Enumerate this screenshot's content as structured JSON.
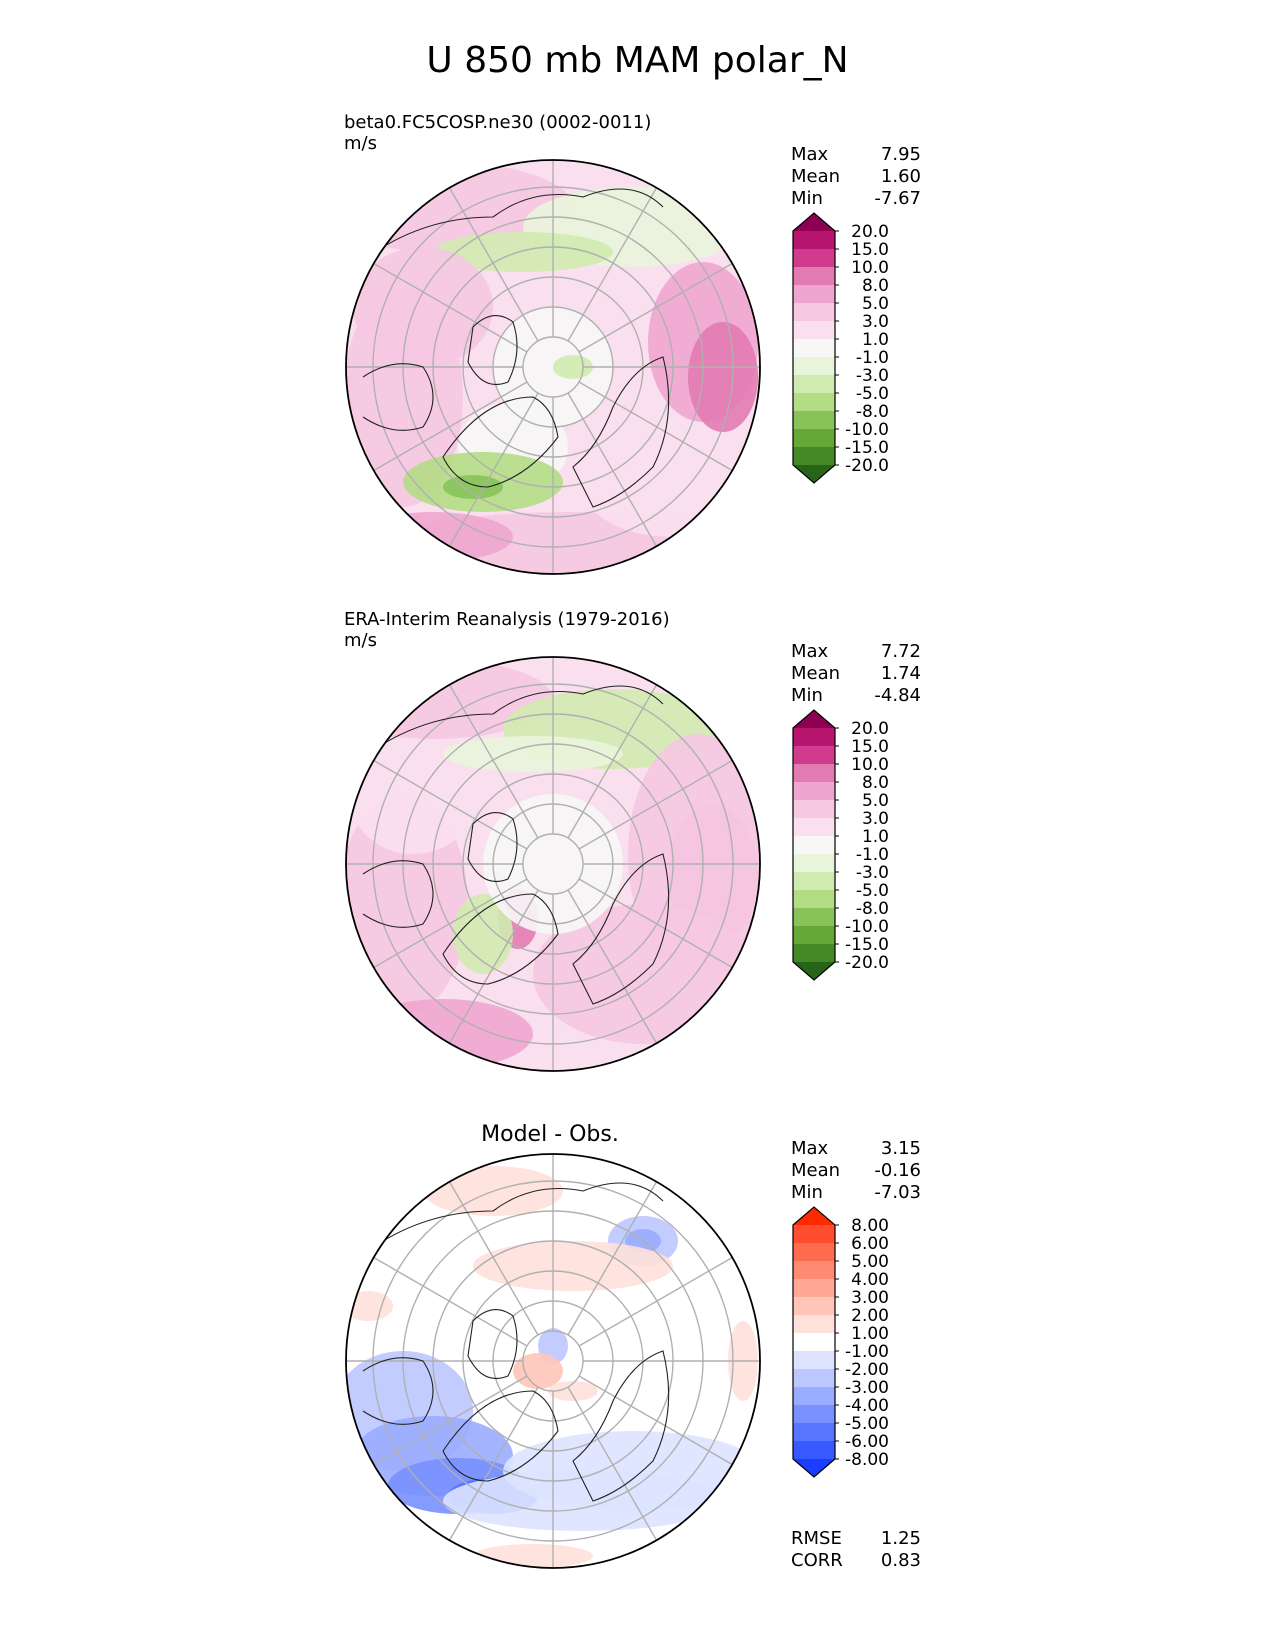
{
  "title": "U 850 mb MAM polar_N",
  "panels": [
    {
      "title": "beta0.FC5COSP.ne30 (0002-0011)",
      "units": "m/s",
      "stats": {
        "max_label": "Max",
        "max": "7.95",
        "mean_label": "Mean",
        "mean": "1.60",
        "min_label": "Min",
        "min": "-7.67"
      },
      "colormap": "PiYG",
      "levels": [
        "20.0",
        "15.0",
        "10.0",
        "8.0",
        "5.0",
        "3.0",
        "1.0",
        "-1.0",
        "-3.0",
        "-5.0",
        "-8.0",
        "-10.0",
        "-15.0",
        "-20.0"
      ]
    },
    {
      "title": "ERA-Interim Reanalysis (1979-2016)",
      "units": "m/s",
      "stats": {
        "max_label": "Max",
        "max": "7.72",
        "mean_label": "Mean",
        "mean": "1.74",
        "min_label": "Min",
        "min": "-4.84"
      },
      "colormap": "PiYG",
      "levels": [
        "20.0",
        "15.0",
        "10.0",
        "8.0",
        "5.0",
        "3.0",
        "1.0",
        "-1.0",
        "-3.0",
        "-5.0",
        "-8.0",
        "-10.0",
        "-15.0",
        "-20.0"
      ]
    },
    {
      "title": "Model - Obs.",
      "stats": {
        "max_label": "Max",
        "max": "3.15",
        "mean_label": "Mean",
        "mean": "-0.16",
        "min_label": "Min",
        "min": "-7.03"
      },
      "metrics": {
        "rmse_label": "RMSE",
        "rmse": "1.25",
        "corr_label": "CORR",
        "corr": "0.83"
      },
      "colormap": "bwr",
      "levels": [
        "8.00",
        "6.00",
        "5.00",
        "4.00",
        "3.00",
        "2.00",
        "1.00",
        "-1.00",
        "-2.00",
        "-3.00",
        "-4.00",
        "-5.00",
        "-6.00",
        "-8.00"
      ]
    }
  ],
  "colors": {
    "PiYG": [
      "#8e0152",
      "#b8156f",
      "#d13b8d",
      "#e27bb1",
      "#eea6cf",
      "#f6c8e2",
      "#fae0ee",
      "#f7f7f7",
      "#e9f5db",
      "#d0ebaf",
      "#b2dd84",
      "#88c35a",
      "#65a838",
      "#448926",
      "#276419"
    ],
    "bwr": [
      "#ff2a00",
      "#ff4d2e",
      "#ff6b4f",
      "#ff8a72",
      "#ffa896",
      "#ffc5b9",
      "#ffe0da",
      "#ffffff",
      "#dde3ff",
      "#bcc7ff",
      "#9aacff",
      "#7990ff",
      "#5875ff",
      "#3759ff",
      "#1a3dff"
    ]
  },
  "chart_data": [
    {
      "type": "heatmap",
      "projection": "north-polar-stereographic",
      "title": "beta0.FC5COSP.ne30 (0002-0011)",
      "units": "m/s",
      "stats": {
        "max": 7.95,
        "mean": 1.6,
        "min": -7.67
      },
      "levels": [
        -20,
        -15,
        -10,
        -8,
        -5,
        -3,
        -1,
        1,
        3,
        5,
        8,
        10,
        15,
        20
      ]
    },
    {
      "type": "heatmap",
      "projection": "north-polar-stereographic",
      "title": "ERA-Interim Reanalysis (1979-2016)",
      "units": "m/s",
      "stats": {
        "max": 7.72,
        "mean": 1.74,
        "min": -4.84
      },
      "levels": [
        -20,
        -15,
        -10,
        -8,
        -5,
        -3,
        -1,
        1,
        3,
        5,
        8,
        10,
        15,
        20
      ]
    },
    {
      "type": "heatmap",
      "projection": "north-polar-stereographic",
      "title": "Model - Obs.",
      "stats": {
        "max": 3.15,
        "mean": -0.16,
        "min": -7.03,
        "rmse": 1.25,
        "corr": 0.83
      },
      "levels": [
        -8,
        -6,
        -5,
        -4,
        -3,
        -2,
        -1,
        1,
        2,
        3,
        4,
        5,
        6,
        8
      ]
    }
  ]
}
